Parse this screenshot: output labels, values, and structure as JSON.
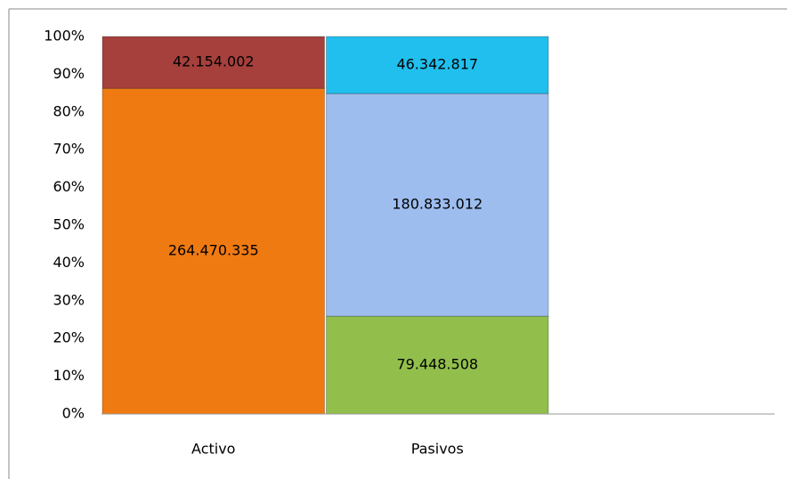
{
  "chart_data": {
    "type": "bar",
    "stacking": "percent",
    "categories": [
      "Activo",
      "Pasivos"
    ],
    "series": [
      {
        "color": "#f07a12",
        "values": [
          264470335,
          null
        ],
        "value_labels": [
          "264.470.335",
          null
        ]
      },
      {
        "color": "#a5403d",
        "values": [
          42154002,
          null
        ],
        "value_labels": [
          "42.154.002",
          null
        ]
      },
      {
        "color": "#92bf4c",
        "values": [
          null,
          79448508
        ],
        "value_labels": [
          null,
          "79.448.508"
        ]
      },
      {
        "color": "#9dbdee",
        "values": [
          null,
          180833012
        ],
        "value_labels": [
          null,
          "180.833.012"
        ]
      },
      {
        "color": "#20bfee",
        "values": [
          null,
          46342817
        ],
        "value_labels": [
          null,
          "46.342.817"
        ]
      }
    ],
    "ylim": [
      0,
      100
    ],
    "yticks": [
      {
        "value": 0,
        "label": "0%"
      },
      {
        "value": 10,
        "label": "10%"
      },
      {
        "value": 20,
        "label": "20%"
      },
      {
        "value": 30,
        "label": "30%"
      },
      {
        "value": 40,
        "label": "40%"
      },
      {
        "value": 50,
        "label": "50%"
      },
      {
        "value": 60,
        "label": "60%"
      },
      {
        "value": 70,
        "label": "70%"
      },
      {
        "value": 80,
        "label": "80%"
      },
      {
        "value": 90,
        "label": "90%"
      },
      {
        "value": 100,
        "label": "100%"
      }
    ]
  }
}
